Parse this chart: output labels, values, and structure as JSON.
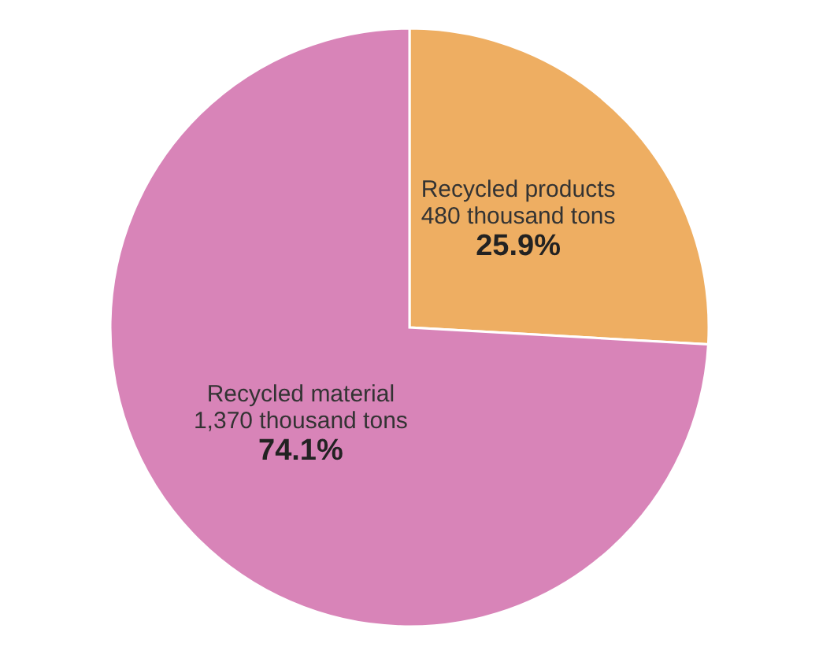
{
  "chart_data": {
    "type": "pie",
    "categories": [
      "Recycled products",
      "Recycled material"
    ],
    "values": [
      25.9,
      74.1
    ],
    "value_labels": [
      "25.9%",
      "74.1%"
    ],
    "annotations": [
      "480 thousand tons",
      "1,370 thousand tons"
    ],
    "colors": [
      "#eeae62",
      "#d884b8"
    ]
  }
}
